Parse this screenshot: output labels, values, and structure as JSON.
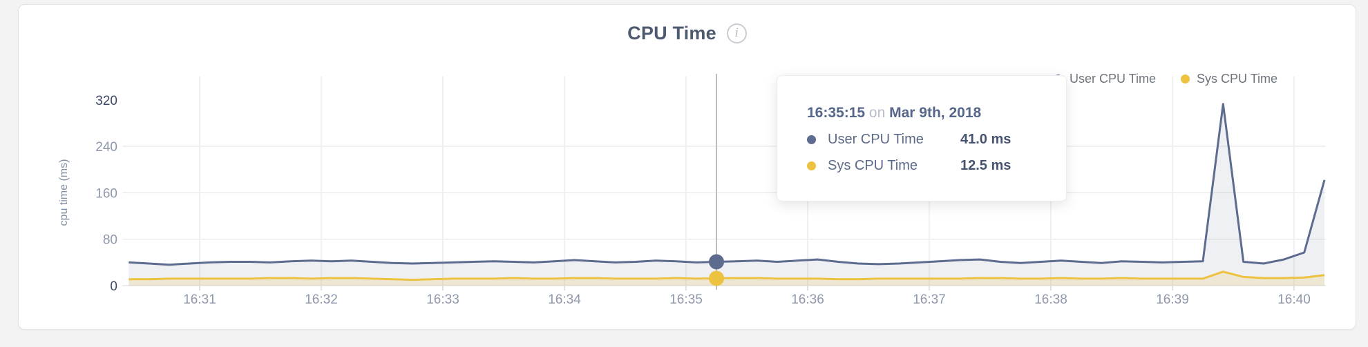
{
  "header": {
    "title": "CPU Time",
    "info_icon_glyph": "i"
  },
  "legend": {
    "items": [
      {
        "label": "User CPU Time",
        "color": "#5d6b8e"
      },
      {
        "label": "Sys CPU Time",
        "color": "#edc240"
      }
    ]
  },
  "tooltip": {
    "time": "16:35:15",
    "conjunction": "on",
    "date": "Mar 9th, 2018",
    "rows": [
      {
        "label": "User CPU Time",
        "value": "41.0 ms",
        "color": "#5d6b8e"
      },
      {
        "label": "Sys CPU Time",
        "value": "12.5 ms",
        "color": "#edc240"
      }
    ]
  },
  "chart_data": {
    "type": "area",
    "title": "CPU Time",
    "xlabel": "",
    "ylabel": "cpu time (ms)",
    "ylim": [
      0,
      320
    ],
    "yticks": [
      0,
      80,
      160,
      240,
      320
    ],
    "xticks": [
      "16:31",
      "16:32",
      "16:33",
      "16:34",
      "16:35",
      "16:36",
      "16:37",
      "16:38",
      "16:39",
      "16:40"
    ],
    "grid": true,
    "legend_position": "top-right",
    "axis_colors": {
      "tick_dark": "#3f4b66",
      "tick_light": "#8e98ab",
      "grid": "#ececec",
      "crosshair": "#bdbdbd"
    },
    "x": [
      "16:30:25",
      "16:30:35",
      "16:30:45",
      "16:30:55",
      "16:31:05",
      "16:31:15",
      "16:31:25",
      "16:31:35",
      "16:31:45",
      "16:31:55",
      "16:32:05",
      "16:32:15",
      "16:32:25",
      "16:32:35",
      "16:32:45",
      "16:32:55",
      "16:33:05",
      "16:33:15",
      "16:33:25",
      "16:33:35",
      "16:33:45",
      "16:33:55",
      "16:34:05",
      "16:34:15",
      "16:34:25",
      "16:34:35",
      "16:34:45",
      "16:34:55",
      "16:35:05",
      "16:35:15",
      "16:35:25",
      "16:35:35",
      "16:35:45",
      "16:35:55",
      "16:36:05",
      "16:36:15",
      "16:36:25",
      "16:36:35",
      "16:36:45",
      "16:36:55",
      "16:37:05",
      "16:37:15",
      "16:37:25",
      "16:37:35",
      "16:37:45",
      "16:37:55",
      "16:38:05",
      "16:38:15",
      "16:38:25",
      "16:38:35",
      "16:38:45",
      "16:38:55",
      "16:39:05",
      "16:39:15",
      "16:39:25",
      "16:39:35",
      "16:39:45",
      "16:39:55",
      "16:40:05",
      "16:40:15"
    ],
    "series": [
      {
        "name": "User CPU Time",
        "color": "#5d6b8e",
        "fill": "rgba(93,107,142,0.10)",
        "values": [
          40,
          38,
          36,
          38,
          40,
          41,
          41,
          40,
          42,
          43,
          42,
          43,
          41,
          39,
          38,
          39,
          40,
          41,
          42,
          41,
          40,
          42,
          44,
          42,
          40,
          41,
          43,
          42,
          40,
          41,
          42,
          43,
          41,
          43,
          45,
          41,
          38,
          37,
          38,
          40,
          42,
          44,
          45,
          41,
          39,
          41,
          43,
          41,
          39,
          42,
          41,
          40,
          41,
          42,
          313,
          41,
          38,
          45,
          57,
          182
        ]
      },
      {
        "name": "Sys CPU Time",
        "color": "#edc240",
        "fill": "rgba(237,194,64,0.18)",
        "values": [
          11,
          11,
          12,
          12,
          12,
          12,
          12,
          13,
          13,
          12,
          13,
          13,
          12,
          11,
          10,
          11,
          12,
          12,
          12,
          13,
          12,
          12,
          13,
          13,
          12,
          12,
          12,
          13,
          12,
          12.5,
          13,
          13,
          12,
          12,
          12,
          11,
          11,
          12,
          12,
          12,
          12,
          12,
          13,
          13,
          12,
          12,
          13,
          12,
          12,
          13,
          12,
          12,
          12,
          12,
          24,
          15,
          13,
          13,
          14,
          18
        ]
      }
    ],
    "hover": {
      "time": "16:35:15",
      "date": "Mar 9th, 2018",
      "values": {
        "user_ms": 41.0,
        "sys_ms": 12.5
      }
    }
  }
}
